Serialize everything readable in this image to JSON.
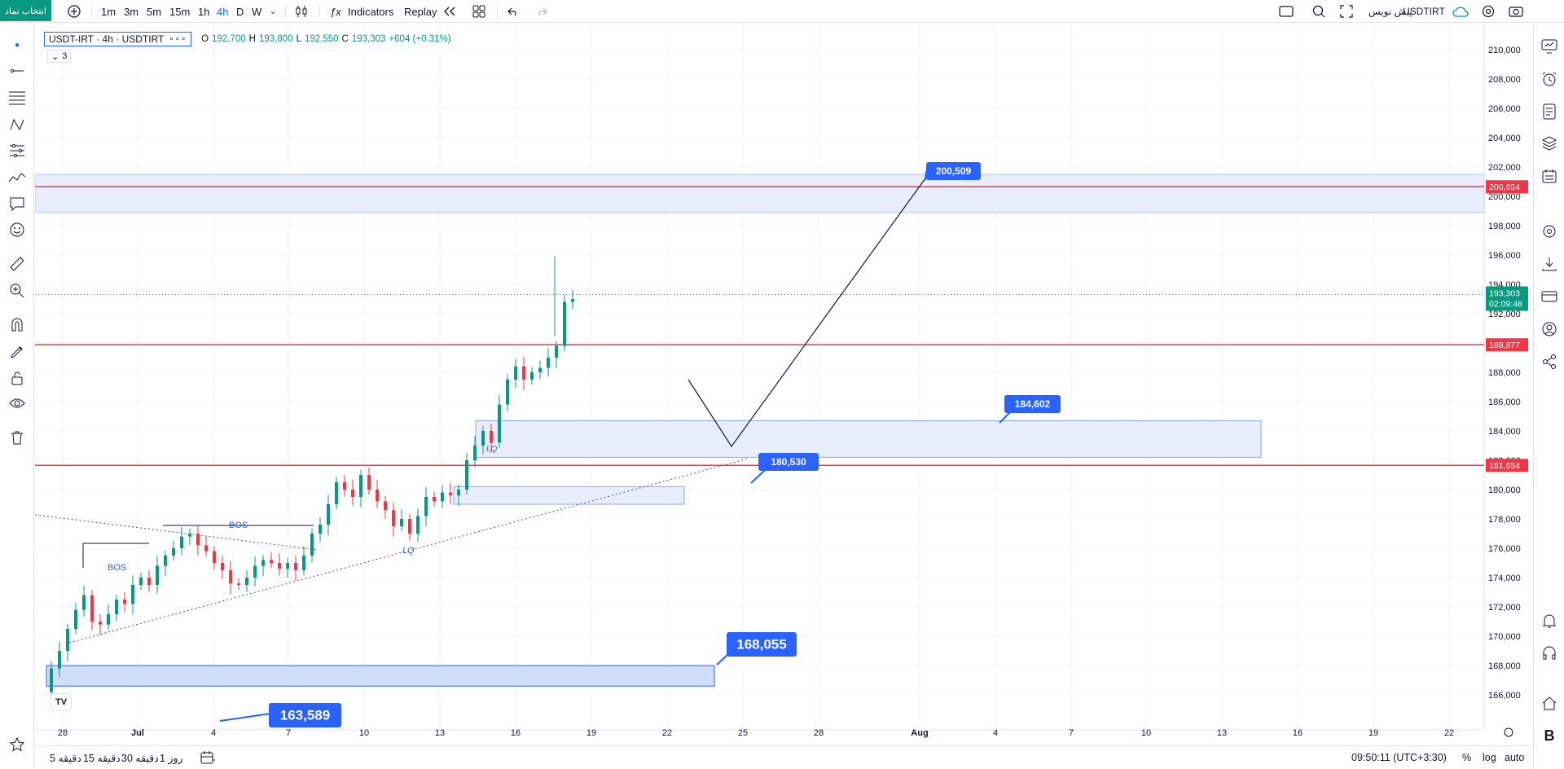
{
  "topbar": {
    "symbol_search": "انتخاب نماد",
    "intervals": [
      "1m",
      "3m",
      "5m",
      "15m",
      "1h",
      "4h",
      "D",
      "W"
    ],
    "active_interval": "4h",
    "indicators_label": "Indicators",
    "replay_label": "Replay",
    "symbol_name": "USDTIRT",
    "symbol_subtitle": "پیش نویس"
  },
  "legend": {
    "title": "USDT-IRT · 4h · USDTIRT",
    "o_key": "O",
    "o_val": "192,700",
    "h_key": "H",
    "h_val": "193,800",
    "l_key": "L",
    "l_val": "192,550",
    "c_key": "C",
    "c_val": "193,303",
    "change": "+604 (+0.31%)",
    "indicator_count": "3"
  },
  "chart_data": {
    "type": "candlestick",
    "price_axis_labels": [
      "210,000",
      "208,000",
      "206,000",
      "204,000",
      "202,000",
      "200,000",
      "198,000",
      "196,000",
      "194,000",
      "192,000",
      "190,000",
      "188,000",
      "186,000",
      "184,000",
      "182,000",
      "180,000",
      "178,000",
      "176,000",
      "174,000",
      "172,000",
      "170,000",
      "168,000",
      "166,000"
    ],
    "time_axis_labels": [
      "28",
      "Jul",
      "4",
      "7",
      "10",
      "13",
      "16",
      "19",
      "22",
      "25",
      "28",
      "Aug",
      "4",
      "7",
      "10",
      "13",
      "16",
      "19",
      "22"
    ],
    "ylim": [
      165000,
      211000
    ],
    "current_price": "193,303",
    "countdown": "02:09:48",
    "horizontal_lines": [
      {
        "price": 200654,
        "label": "200,654",
        "color": "#f23645"
      },
      {
        "price": 189877,
        "label": "189,877",
        "color": "#f23645"
      },
      {
        "price": 181654,
        "label": "181,654",
        "color": "#f23645"
      }
    ],
    "annotations": [
      "BOS",
      "BOS",
      "LQ",
      "LQ"
    ],
    "price_callouts": [
      "200,509",
      "184,602",
      "180,530",
      "168,055",
      "163,589"
    ]
  },
  "bottom_bar": {
    "ranges": [
      "5 دقیقه",
      "15 دقیقه",
      "30 دقیقه",
      "1 روز"
    ],
    "clock": "09:50:11 (UTC+3:30)",
    "percent": "%",
    "log": "log",
    "auto": "auto"
  },
  "colors": {
    "up": "#089981",
    "down": "#f23645",
    "accent": "#2962ff",
    "zone_fill": "#dbe6fd"
  },
  "icons": {
    "left": [
      "crosshair-icon",
      "trendline-icon",
      "fib-icon",
      "pattern-icon",
      "projection-icon",
      "brush-icon",
      "text-icon",
      "emoji-icon",
      "ruler-icon",
      "zoom-icon",
      "magnet-icon",
      "lock-draw-icon",
      "lock-icon",
      "eye-icon",
      "trash-icon",
      "star-icon"
    ],
    "right": [
      "watchlist-icon",
      "alert-clock-icon",
      "news-icon",
      "layers-icon",
      "calendar-icon",
      "settings-icon",
      "download-icon",
      "wallet-icon",
      "user-icon",
      "share-icon",
      "bell-icon",
      "headset-icon",
      "home-icon",
      "brand-icon"
    ]
  }
}
